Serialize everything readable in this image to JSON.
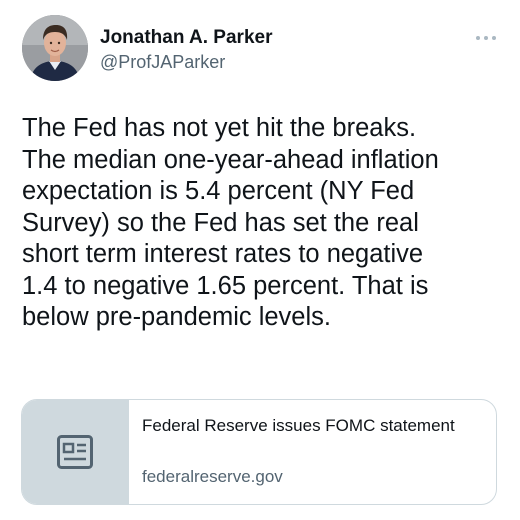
{
  "tweet": {
    "author": {
      "display_name": "Jonathan A. Parker",
      "handle": "@ProfJAParker",
      "avatar_icon": "profile-photo"
    },
    "text": "The Fed has not yet hit the breaks.\nThe median one-year-ahead inflation\nexpectation is 5.4 percent (NY Fed\nSurvey) so the Fed has set the real\nshort term interest rates to negative\n1.4 to negative 1.65 percent. That is\nbelow pre-pandemic levels.",
    "more_icon": "more-horizontal-icon",
    "link_card": {
      "title": "Federal Reserve issues FOMC statement",
      "domain": "federalreserve.gov",
      "thumbnail_icon": "article-placeholder-icon"
    }
  },
  "colors": {
    "text_primary": "#0f1419",
    "text_secondary": "#536471",
    "border": "#cfd9de",
    "thumb_bg": "#cfd9de",
    "thumb_icon": "#536471"
  }
}
